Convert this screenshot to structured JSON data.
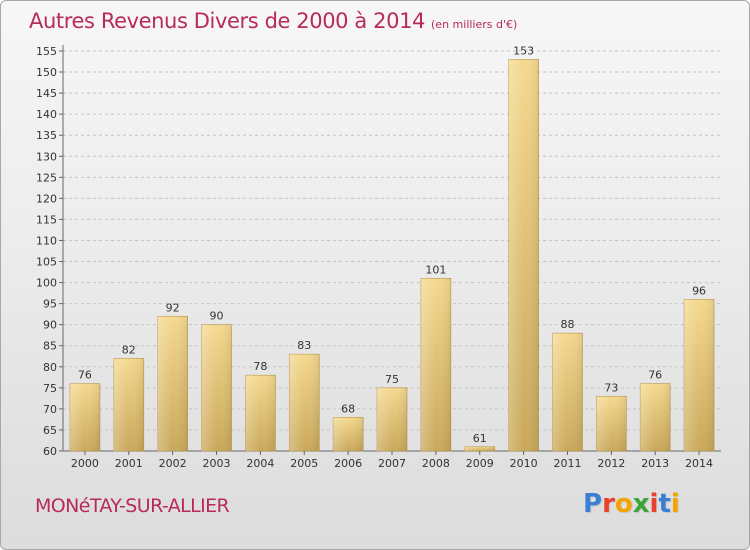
{
  "header": {
    "title": "Autres Revenus Divers de 2000 à 2014",
    "subtitle": "(en milliers d'€)"
  },
  "footer": {
    "commune": "MONéTAY-SUR-ALLIER",
    "logo_text": "Proxiti",
    "logo_colors": [
      "#3b7fd4",
      "#e8412b",
      "#f4a300",
      "#3aa53a",
      "#e8412b",
      "#3b7fd4",
      "#f4a300"
    ]
  },
  "chart_data": {
    "type": "bar",
    "title": "Autres Revenus Divers de 2000 à 2014",
    "subtitle": "(en milliers d'€)",
    "categories": [
      "2000",
      "2001",
      "2002",
      "2003",
      "2004",
      "2005",
      "2006",
      "2007",
      "2008",
      "2009",
      "2010",
      "2011",
      "2012",
      "2013",
      "2014"
    ],
    "values": [
      76,
      82,
      92,
      90,
      78,
      83,
      68,
      75,
      101,
      61,
      153,
      88,
      73,
      76,
      96
    ],
    "ylim": [
      60,
      155
    ],
    "yticks": [
      60,
      65,
      70,
      75,
      80,
      85,
      90,
      95,
      100,
      105,
      110,
      115,
      120,
      125,
      130,
      135,
      140,
      145,
      150,
      155
    ],
    "grid": "horizontal dashed",
    "legend": "none",
    "bar_color": "#e8c878",
    "bar_color_dark": "#c9a85a"
  }
}
